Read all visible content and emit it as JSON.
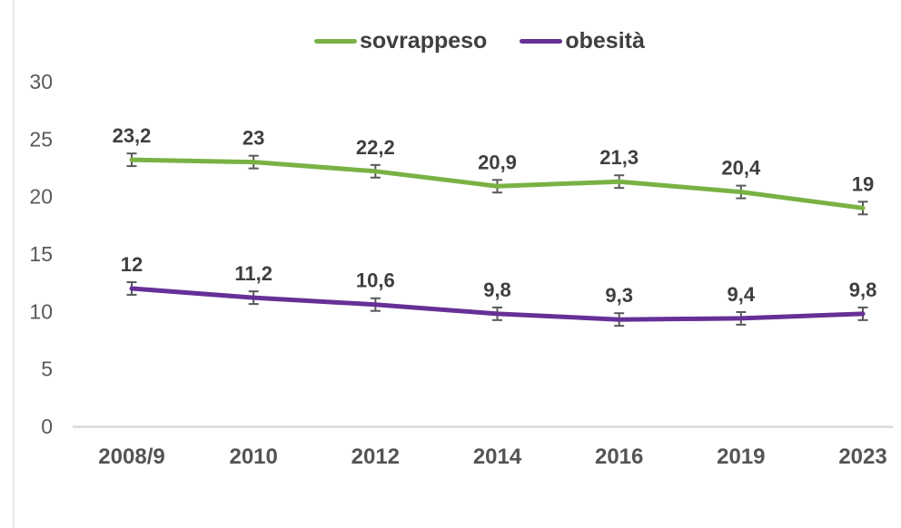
{
  "chart_data": {
    "type": "line",
    "categories": [
      "2008/9",
      "2010",
      "2012",
      "2014",
      "2016",
      "2019",
      "2023"
    ],
    "series": [
      {
        "name": "sovrappeso",
        "color": "#79B244",
        "values": [
          23.2,
          23,
          22.2,
          20.9,
          21.3,
          20.4,
          19
        ],
        "labels": [
          "23,2",
          "23",
          "22,2",
          "20,9",
          "21,3",
          "20,4",
          "19"
        ]
      },
      {
        "name": "obesità",
        "color": "#663097",
        "values": [
          12,
          11.2,
          10.6,
          9.8,
          9.3,
          9.4,
          9.8
        ],
        "labels": [
          "12",
          "11,2",
          "10,6",
          "9,8",
          "9,3",
          "9,4",
          "9,8"
        ]
      }
    ],
    "title": "",
    "xlabel": "",
    "ylabel": "",
    "ylim": [
      0,
      30
    ],
    "yticks": [
      0,
      5,
      10,
      15,
      20,
      25,
      30
    ],
    "ytick_labels": [
      "0",
      "5",
      "10",
      "15",
      "20",
      "25",
      "30"
    ],
    "error_bar": 0.55,
    "legend_position": "top-center",
    "grid": false
  },
  "colors": {
    "series_sovrappeso": "#79B244",
    "series_obesita": "#663097",
    "data_label": "#3F3F3F",
    "axis_tick": "#595959",
    "x_tick": "#545454",
    "axis_line": "#D9D9D9",
    "error_bar": "#595959",
    "background": "#FFFFFF",
    "frame_line": "#E8E8E8"
  }
}
